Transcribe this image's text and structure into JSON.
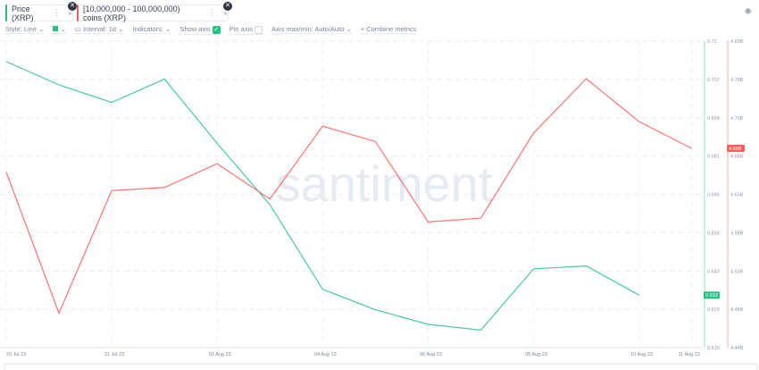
{
  "tabs": [
    {
      "label": "Price (XRP)",
      "color": "#26c281"
    },
    {
      "label": "[10,000,000 - 100,000,000) coins (XRP)",
      "color": "#ff5b5b"
    }
  ],
  "toolbar": {
    "style": "Style: Line",
    "interval": "Interval: 1d",
    "indicators": "Indicators:",
    "show_axis": "Show axis",
    "pin_axis": "Pin axis",
    "axis_maxmin": "Axis max/min: Auto/Auto",
    "combine": "Combine metrics"
  },
  "watermark": "santiment",
  "chart_data": {
    "type": "line",
    "x": [
      "29 Jul 23",
      "30 Jul 23",
      "31 Jul 23",
      "01 Aug 23",
      "02 Aug 23",
      "03 Aug 23",
      "04 Aug 23",
      "05 Aug 23",
      "06 Aug 23",
      "07 Aug 23",
      "08 Aug 23",
      "09 Aug 23",
      "10 Aug 23",
      "11 Aug 23"
    ],
    "xticks": [
      "29 Jul 23",
      "31 Jul 23",
      "02 Aug 23",
      "04 Aug 23",
      "06 Aug 23",
      "08 Aug 23",
      "10 Aug 23",
      "11 Aug 23"
    ],
    "series": [
      {
        "name": "Price (XRP)",
        "color": "#26c281",
        "values": [
          0.713,
          0.705,
          0.699,
          0.707,
          0.685,
          0.664,
          0.635,
          0.628,
          0.623,
          0.621,
          0.642,
          0.643,
          0.633,
          null
        ],
        "last_label": "0.633",
        "ylim": [
          0.615,
          0.72
        ],
        "yticks": [
          "0.72",
          "0.707",
          "0.694",
          "0.681",
          "0.668",
          "0.655",
          "0.642",
          "0.629",
          "0.615"
        ]
      },
      {
        "name": "[10,000,000 - 100,000,000) coins (XRP)",
        "color": "#ff5b5b",
        "values": [
          4.659,
          4.475,
          4.635,
          4.639,
          4.67,
          4.624,
          4.719,
          4.699,
          4.594,
          4.599,
          4.71,
          4.781,
          4.725,
          4.69
        ],
        "last_label": "4.69B",
        "ylim": [
          4.43,
          4.83
        ],
        "yticks": [
          "4.83B",
          "4.78B",
          "4.73B",
          "4.68B",
          "4.63B",
          "4.58B",
          "4.53B",
          "4.48B",
          "4.44B"
        ]
      }
    ],
    "grid": true
  }
}
